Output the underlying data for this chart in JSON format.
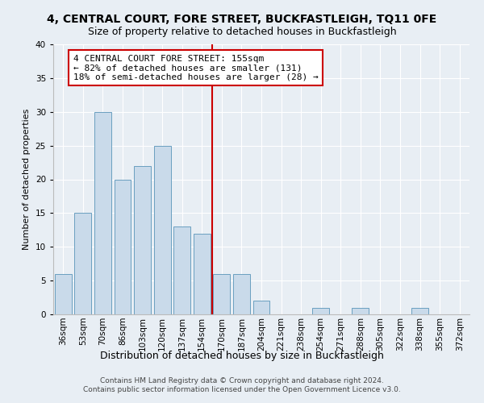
{
  "title": "4, CENTRAL COURT, FORE STREET, BUCKFASTLEIGH, TQ11 0FE",
  "subtitle": "Size of property relative to detached houses in Buckfastleigh",
  "xlabel": "Distribution of detached houses by size in Buckfastleigh",
  "ylabel": "Number of detached properties",
  "categories": [
    "36sqm",
    "53sqm",
    "70sqm",
    "86sqm",
    "103sqm",
    "120sqm",
    "137sqm",
    "154sqm",
    "170sqm",
    "187sqm",
    "204sqm",
    "221sqm",
    "238sqm",
    "254sqm",
    "271sqm",
    "288sqm",
    "305sqm",
    "322sqm",
    "338sqm",
    "355sqm",
    "372sqm"
  ],
  "values": [
    6,
    15,
    30,
    20,
    22,
    25,
    13,
    12,
    6,
    6,
    2,
    0,
    0,
    1,
    0,
    1,
    0,
    0,
    1,
    0,
    0
  ],
  "bar_color": "#c9daea",
  "bar_edge_color": "#6a9fc0",
  "vline_x_index": 7.5,
  "vline_color": "#cc0000",
  "ylim": [
    0,
    40
  ],
  "yticks": [
    0,
    5,
    10,
    15,
    20,
    25,
    30,
    35,
    40
  ],
  "annotation_line1": "4 CENTRAL COURT FORE STREET: 155sqm",
  "annotation_line2": "← 82% of detached houses are smaller (131)",
  "annotation_line3": "18% of semi-detached houses are larger (28) →",
  "annotation_box_color": "#cc0000",
  "footer_line1": "Contains HM Land Registry data © Crown copyright and database right 2024.",
  "footer_line2": "Contains public sector information licensed under the Open Government Licence v3.0.",
  "background_color": "#e8eef4",
  "plot_bg_color": "#e8eef4",
  "title_fontsize": 10,
  "subtitle_fontsize": 9,
  "xlabel_fontsize": 9,
  "ylabel_fontsize": 8,
  "tick_fontsize": 7.5,
  "annotation_fontsize": 8,
  "footer_fontsize": 6.5
}
